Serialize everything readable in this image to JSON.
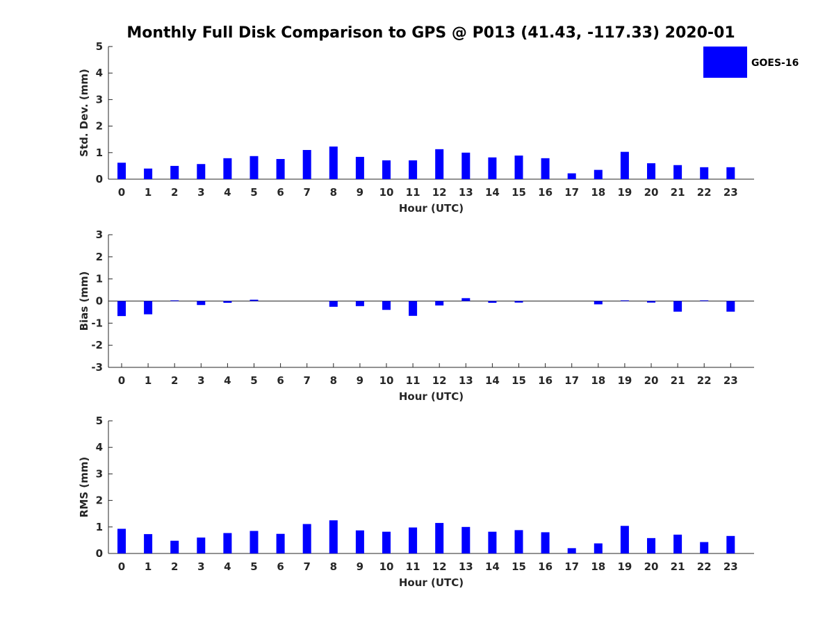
{
  "title": "Monthly Full Disk Comparison to GPS @ P013 (41.43, -117.33) 2020-01",
  "legend": {
    "label": "GOES-16",
    "color": "#0000ff",
    "placement": "top-right"
  },
  "chart_data": [
    {
      "type": "bar",
      "categories": [
        "0",
        "1",
        "2",
        "3",
        "4",
        "5",
        "6",
        "7",
        "8",
        "9",
        "10",
        "11",
        "12",
        "13",
        "14",
        "15",
        "16",
        "17",
        "18",
        "19",
        "20",
        "21",
        "22",
        "23"
      ],
      "series": [
        {
          "name": "GOES-16",
          "values": [
            0.62,
            0.4,
            0.5,
            0.57,
            0.79,
            0.87,
            0.76,
            1.1,
            1.23,
            0.84,
            0.71,
            0.71,
            1.13,
            1.0,
            0.82,
            0.89,
            0.79,
            0.22,
            0.35,
            1.03,
            0.6,
            0.53,
            0.45,
            0.45
          ]
        }
      ],
      "xlabel": "Hour (UTC)",
      "ylabel": "Std. Dev. (mm)",
      "ylim": [
        0,
        5
      ],
      "yticks": [
        "0",
        "1",
        "2",
        "3",
        "4",
        "5"
      ],
      "grid": false
    },
    {
      "type": "bar",
      "categories": [
        "0",
        "1",
        "2",
        "3",
        "4",
        "5",
        "6",
        "7",
        "8",
        "9",
        "10",
        "11",
        "12",
        "13",
        "14",
        "15",
        "16",
        "17",
        "18",
        "19",
        "20",
        "21",
        "22",
        "23"
      ],
      "series": [
        {
          "name": "GOES-16",
          "values": [
            -0.68,
            -0.6,
            0.03,
            -0.18,
            -0.08,
            0.06,
            0.0,
            0.0,
            -0.26,
            -0.23,
            -0.4,
            -0.67,
            -0.2,
            0.13,
            -0.08,
            -0.07,
            0.0,
            0.0,
            -0.15,
            0.03,
            -0.07,
            -0.48,
            0.03,
            -0.48
          ]
        }
      ],
      "xlabel": "Hour (UTC)",
      "ylabel": "Bias (mm)",
      "ylim": [
        -3,
        3
      ],
      "yticks": [
        "-3",
        "-2",
        "-1",
        "0",
        "1",
        "2",
        "3"
      ],
      "grid": false
    },
    {
      "type": "bar",
      "categories": [
        "0",
        "1",
        "2",
        "3",
        "4",
        "5",
        "6",
        "7",
        "8",
        "9",
        "10",
        "11",
        "12",
        "13",
        "14",
        "15",
        "16",
        "17",
        "18",
        "19",
        "20",
        "21",
        "22",
        "23"
      ],
      "series": [
        {
          "name": "GOES-16",
          "values": [
            0.93,
            0.73,
            0.48,
            0.6,
            0.77,
            0.85,
            0.74,
            1.11,
            1.25,
            0.87,
            0.82,
            0.98,
            1.15,
            1.0,
            0.82,
            0.88,
            0.8,
            0.2,
            0.38,
            1.04,
            0.58,
            0.71,
            0.43,
            0.66
          ]
        }
      ],
      "xlabel": "Hour (UTC)",
      "ylabel": "RMS (mm)",
      "ylim": [
        0,
        5
      ],
      "yticks": [
        "0",
        "1",
        "2",
        "3",
        "4",
        "5"
      ],
      "grid": false
    }
  ]
}
